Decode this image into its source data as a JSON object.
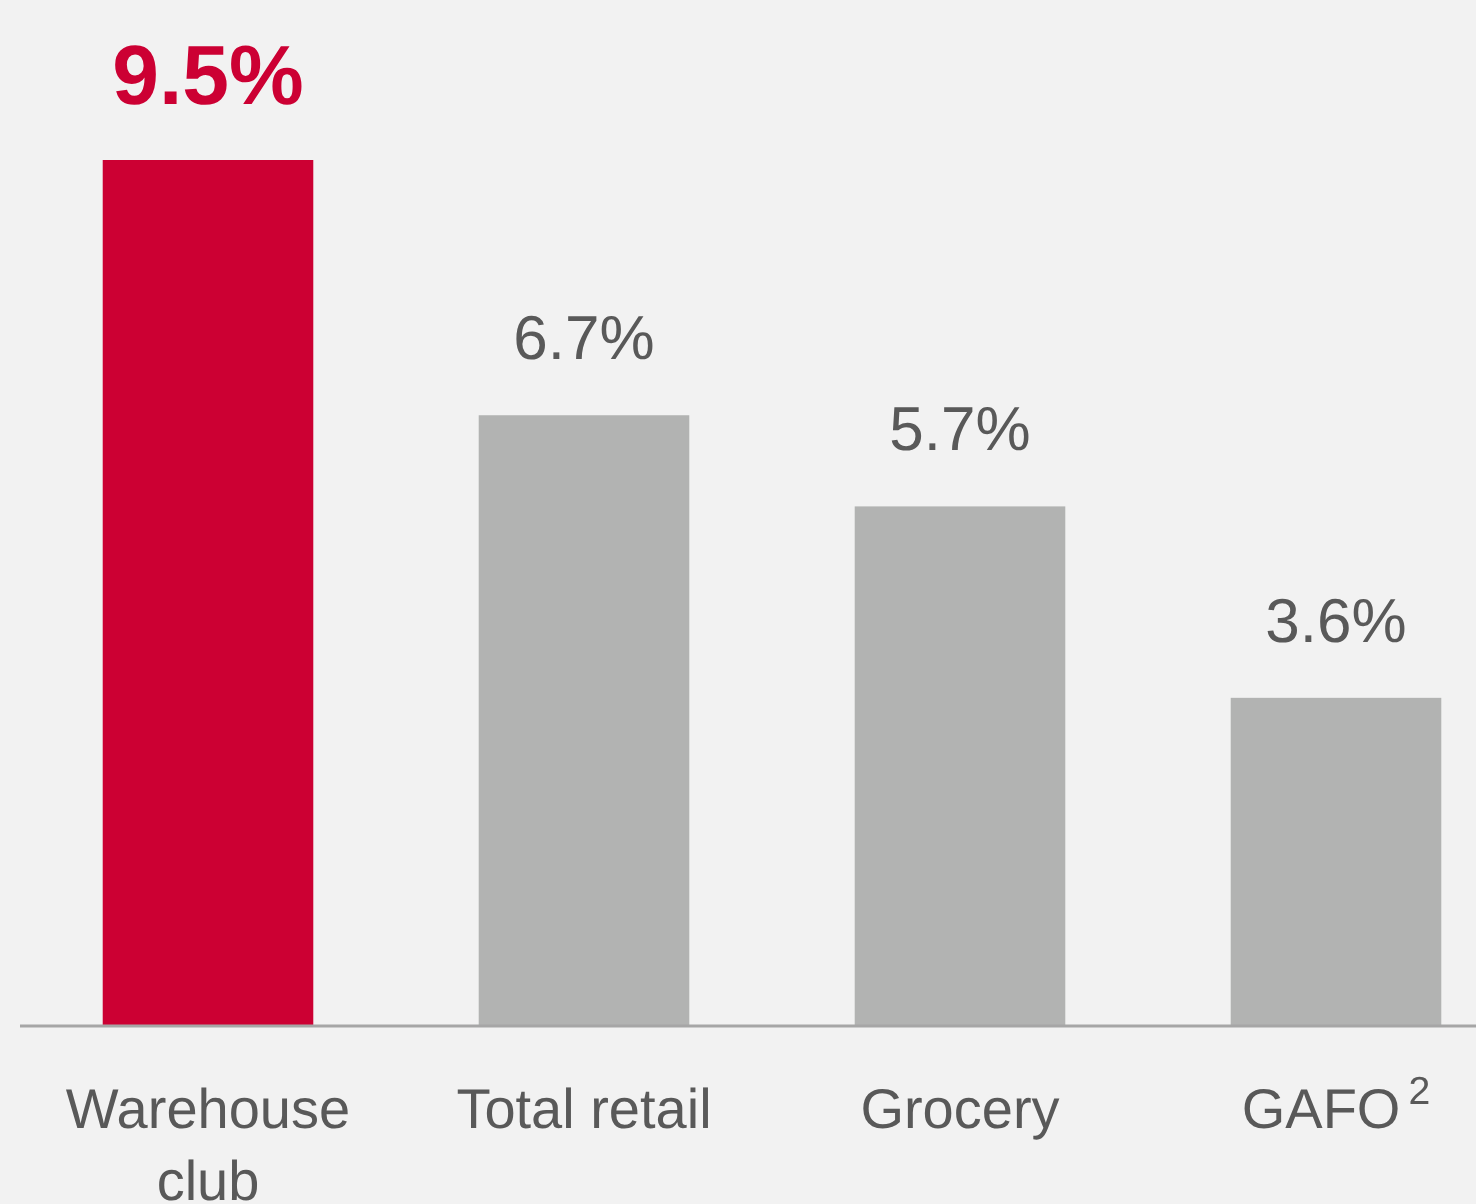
{
  "chart_data": {
    "type": "bar",
    "categories": [
      "Warehouse club",
      "Total retail",
      "Grocery",
      "GAFO$^{2}$"
    ],
    "values": [
      9.5,
      6.7,
      5.7,
      3.6
    ],
    "colors": [
      "#cc0033",
      "#b2b3b2",
      "#b2b3b2",
      "#b2b3b2"
    ],
    "value_labels": [
      "9.5%",
      "6.7%",
      "5.7%",
      "3.6%"
    ]
  }
}
